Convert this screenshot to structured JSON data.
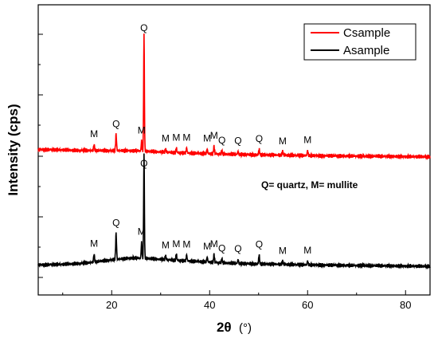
{
  "chart_data": {
    "type": "line",
    "xlabel_main": "2θ",
    "xlabel_unit": "(°)",
    "ylabel": "Intensity (cps)",
    "xlim": [
      5,
      85
    ],
    "x_ticks": [
      20,
      40,
      60,
      80
    ],
    "y_ticks_labeled": false,
    "grid": false,
    "legend_position": "top-right",
    "annotation": "Q= quartz, M= mullite",
    "series": [
      {
        "name": "Csample",
        "color": "#ff0000",
        "baseline": [
          [
            5,
            0.9
          ],
          [
            10,
            0.85
          ],
          [
            15,
            0.8
          ],
          [
            20,
            0.78
          ],
          [
            25,
            0.78
          ],
          [
            28,
            0.7
          ],
          [
            35,
            0.55
          ],
          [
            45,
            0.42
          ],
          [
            60,
            0.3
          ],
          [
            85,
            0.18
          ]
        ],
        "peaks": [
          {
            "x": 16.4,
            "h": 0.6,
            "label": "M"
          },
          {
            "x": 20.9,
            "h": 1.6,
            "label": "Q"
          },
          {
            "x": 26.1,
            "h": 1.0,
            "label": "M"
          },
          {
            "x": 26.6,
            "h": 11.5,
            "label": "Q"
          },
          {
            "x": 31.0,
            "h": 0.3,
            "label": "M"
          },
          {
            "x": 33.2,
            "h": 0.45,
            "label": "M"
          },
          {
            "x": 35.3,
            "h": 0.5,
            "label": "M"
          },
          {
            "x": 39.5,
            "h": 0.45,
            "label": "M"
          },
          {
            "x": 40.9,
            "h": 0.75,
            "label": "M"
          },
          {
            "x": 42.5,
            "h": 0.3,
            "label": "Q"
          },
          {
            "x": 45.8,
            "h": 0.3,
            "label": "Q"
          },
          {
            "x": 50.1,
            "h": 0.55,
            "label": "Q"
          },
          {
            "x": 54.9,
            "h": 0.35,
            "label": "M"
          },
          {
            "x": 60.0,
            "h": 0.5,
            "label": "M"
          }
        ]
      },
      {
        "name": "Asample",
        "color": "#000000",
        "baseline": [
          [
            5,
            0.3
          ],
          [
            10,
            0.35
          ],
          [
            15,
            0.5
          ],
          [
            20,
            0.8
          ],
          [
            24,
            1.0
          ],
          [
            27,
            0.95
          ],
          [
            35,
            0.7
          ],
          [
            45,
            0.45
          ],
          [
            60,
            0.3
          ],
          [
            85,
            0.15
          ]
        ],
        "peaks": [
          {
            "x": 16.4,
            "h": 0.8,
            "label": "M"
          },
          {
            "x": 20.9,
            "h": 2.6,
            "label": "Q"
          },
          {
            "x": 26.1,
            "h": 1.6,
            "label": "M"
          },
          {
            "x": 26.6,
            "h": 10.5,
            "label": "Q"
          },
          {
            "x": 31.0,
            "h": 0.4,
            "label": "M"
          },
          {
            "x": 33.2,
            "h": 0.6,
            "label": "M"
          },
          {
            "x": 35.3,
            "h": 0.6,
            "label": "M"
          },
          {
            "x": 39.5,
            "h": 0.5,
            "label": "M"
          },
          {
            "x": 40.9,
            "h": 0.8,
            "label": "M"
          },
          {
            "x": 42.5,
            "h": 0.4,
            "label": "Q"
          },
          {
            "x": 45.8,
            "h": 0.4,
            "label": "Q"
          },
          {
            "x": 50.1,
            "h": 0.9,
            "label": "Q"
          },
          {
            "x": 54.9,
            "h": 0.3,
            "label": "M"
          },
          {
            "x": 60.0,
            "h": 0.4,
            "label": "M"
          }
        ]
      }
    ]
  }
}
